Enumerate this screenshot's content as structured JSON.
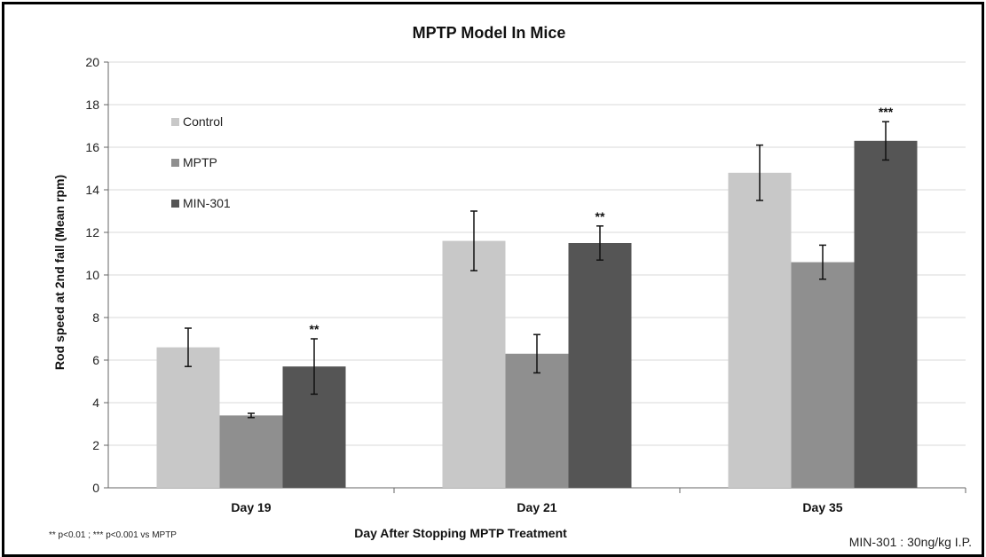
{
  "chart_data": {
    "type": "bar",
    "title": "MPTP Model In Mice",
    "xlabel": "Day After Stopping MPTP Treatment",
    "ylabel": "Rod speed at 2nd fall  (Mean rpm)",
    "ylim": [
      0,
      20
    ],
    "yticks": [
      0,
      2,
      4,
      6,
      8,
      10,
      12,
      14,
      16,
      18,
      20
    ],
    "grid": true,
    "legend_position": "top-left",
    "categories": [
      "Day 19",
      "Day 21",
      "Day 35"
    ],
    "series": [
      {
        "name": "Control",
        "color": "#c8c8c8",
        "values": [
          6.6,
          11.6,
          14.8
        ],
        "errors": [
          0.9,
          1.4,
          1.3
        ],
        "significance": [
          "",
          "",
          ""
        ]
      },
      {
        "name": "MPTP",
        "color": "#8f8f8f",
        "values": [
          3.4,
          6.3,
          10.6
        ],
        "errors": [
          0.1,
          0.9,
          0.8
        ],
        "significance": [
          "",
          "",
          ""
        ]
      },
      {
        "name": "MIN-301",
        "color": "#555555",
        "values": [
          5.7,
          11.5,
          16.3
        ],
        "errors": [
          1.3,
          0.8,
          0.9
        ],
        "significance": [
          "**",
          "**",
          "***"
        ]
      }
    ],
    "annotations": {
      "footnote": "** p<0.01 ; *** p<0.001 vs MPTP",
      "dose": "MIN-301 : 30ng/kg I.P."
    }
  }
}
